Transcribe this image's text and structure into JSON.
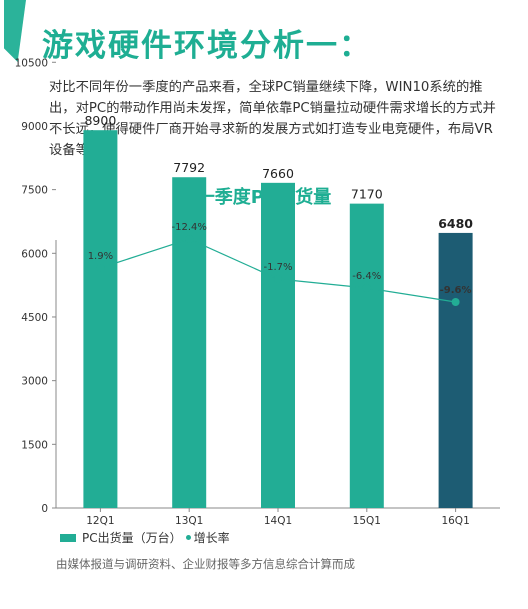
{
  "header": {
    "title": "游戏硬件环境分析一："
  },
  "intro": "对比不同年份一季度的产品来看，全球PC销量继续下降，WIN10系统的推出，对PC的带动作用尚未发挥，简单依靠PC销量拉动硬件需求增长的方式并不长远，使得硬件厂商开始寻求新的发展方式如打造专业电竞硬件，布局VR设备等。",
  "source": "由媒体报道与调研资料、企业财报等多方信息综合计算而成",
  "colors": {
    "accent": "#1eae93",
    "bar": "#22ad95",
    "bar_highlight": "#1d5c73",
    "line": "#22ad95"
  },
  "chart_data": {
    "type": "bar",
    "title": "一季度PC出货量",
    "categories": [
      "12Q1",
      "13Q1",
      "14Q1",
      "15Q1",
      "16Q1"
    ],
    "ylim": [
      0,
      12000
    ],
    "yticks": [
      0,
      1500,
      3000,
      4500,
      6000,
      7500,
      9000,
      10500
    ],
    "grid": false,
    "legend_position": "bottom-left",
    "series": [
      {
        "name": "PC出货量（万台）",
        "type": "bar",
        "values": [
          8900,
          7792,
          7660,
          7170,
          6480
        ],
        "data_labels": [
          "8900",
          "7792",
          "7660",
          "7170",
          "6480"
        ]
      },
      {
        "name": "增长率",
        "type": "line",
        "values": [
          1.9,
          -12.4,
          -1.7,
          -6.4,
          -9.6
        ],
        "data_labels": [
          "1.9%",
          "-12.4%",
          "-1.7%",
          "-6.4%",
          "-9.6%"
        ]
      }
    ],
    "legend": {
      "bar_label": "PC出货量（万台）",
      "line_label": "增长率"
    }
  }
}
